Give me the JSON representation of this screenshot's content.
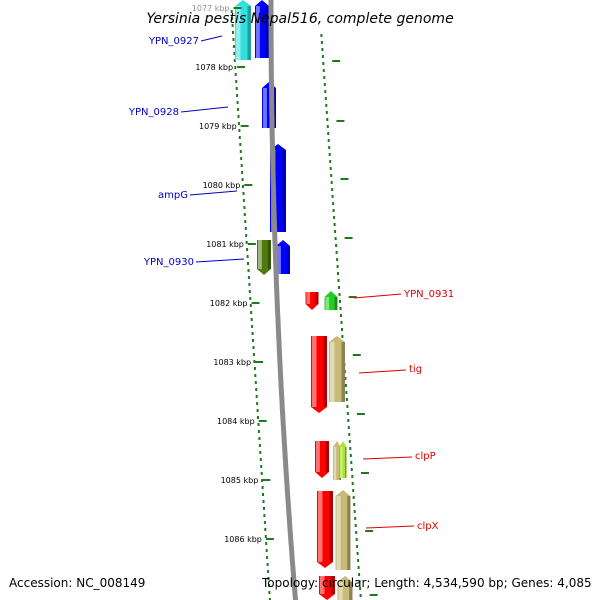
{
  "title": "Yersinia pestis Nepal516, complete genome",
  "footer": {
    "accession": "Accession: NC_008149",
    "topology": "Topology: circular; Length: 4,534,590 bp; Genes: 4,085"
  },
  "colors": {
    "backbone": "#8a8a8a",
    "ticks": "#1f7a1f",
    "forward_label": "#0000cc",
    "reverse_label": "#dd0000",
    "cyan": "#33e0e0",
    "blue": "#0000ff",
    "olive": "#4f7a10",
    "red": "#ff0000",
    "green": "#22cc22",
    "tan": "#c8bb7a",
    "lime": "#a6e62e"
  },
  "scale": {
    "unit": "kbp",
    "ticks": [
      "1077 kbp",
      "1078 kbp",
      "1079 kbp",
      "1080 kbp",
      "1081 kbp",
      "1082 kbp",
      "1083 kbp",
      "1084 kbp",
      "1085 kbp",
      "1086 kbp"
    ]
  },
  "genes": {
    "forward": [
      "YPN_0927",
      "YPN_0928",
      "ampG",
      "YPN_0930"
    ],
    "reverse": [
      "YPN_0931",
      "tig",
      "clpP",
      "clpX"
    ]
  }
}
